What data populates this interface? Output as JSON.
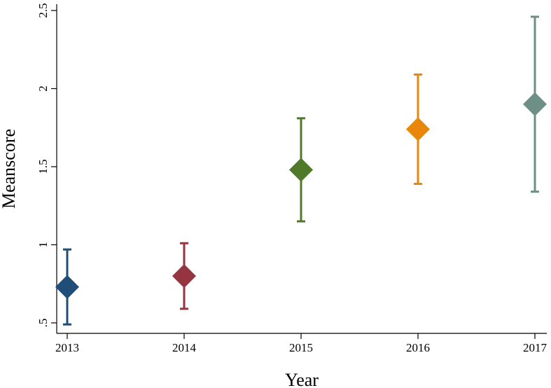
{
  "chart_data": {
    "type": "scatter",
    "title": "",
    "xlabel": "Year",
    "ylabel": "Meanscore",
    "categories": [
      "2013",
      "2014",
      "2015",
      "2016",
      "2017"
    ],
    "y_ticks": [
      ".5",
      "1",
      "1.5",
      "2",
      "2.5"
    ],
    "ylim": [
      0.5,
      2.5
    ],
    "grid": false,
    "legend": "none",
    "points": [
      {
        "x": "2013",
        "mean": 0.73,
        "lower": 0.49,
        "upper": 0.97,
        "color": "#1f4e79"
      },
      {
        "x": "2014",
        "mean": 0.8,
        "lower": 0.59,
        "upper": 1.01,
        "color": "#943540"
      },
      {
        "x": "2015",
        "mean": 1.48,
        "lower": 1.15,
        "upper": 1.81,
        "color": "#4f7a2a"
      },
      {
        "x": "2016",
        "mean": 1.74,
        "lower": 1.39,
        "upper": 2.09,
        "color": "#e8870a"
      },
      {
        "x": "2017",
        "mean": 1.9,
        "lower": 1.34,
        "upper": 2.46,
        "color": "#6e8f85"
      }
    ]
  }
}
